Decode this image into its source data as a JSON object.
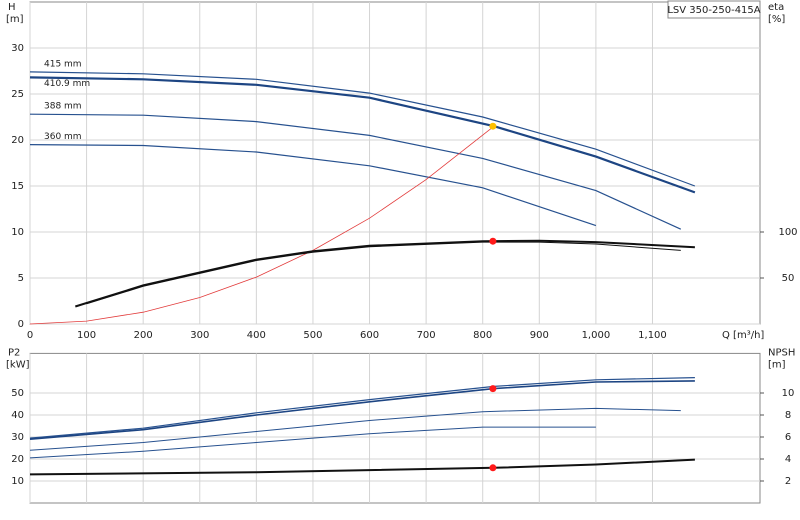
{
  "chart_data": [
    {
      "type": "line",
      "title": "LSV 350-250-415A",
      "ylabel": "H",
      "yunit": "[m]",
      "y2label": "eta",
      "y2unit": "[%]",
      "xlabel": "Q [m³/h]",
      "xlim": [
        0,
        1290
      ],
      "xticks": [
        0,
        100,
        200,
        300,
        400,
        500,
        600,
        700,
        800,
        900,
        {
          "value": 1000,
          "label": "1,000"
        },
        {
          "value": 1100,
          "label": "1,100"
        }
      ],
      "ylim": [
        0,
        35
      ],
      "yticks": [
        0,
        5,
        10,
        15,
        20,
        25,
        30
      ],
      "y2lim": [
        0,
        350
      ],
      "y2ticks": [
        50,
        100
      ],
      "grid": true,
      "series": [
        {
          "name": "415 mm",
          "color": "#27518f",
          "linewidth": 1.2,
          "x": [
            0,
            200,
            400,
            600,
            800,
            1000,
            1175
          ],
          "values": [
            27.4,
            27.2,
            26.6,
            25.1,
            22.5,
            19.0,
            15.0
          ]
        },
        {
          "name": "410.9 mm",
          "color": "#1d4583",
          "linewidth": 2.2,
          "x": [
            0,
            200,
            400,
            600,
            820,
            1000,
            1175
          ],
          "values": [
            26.8,
            26.6,
            26.0,
            24.6,
            21.5,
            18.2,
            14.3
          ]
        },
        {
          "name": "388 mm",
          "color": "#27518f",
          "linewidth": 1.2,
          "x": [
            0,
            200,
            400,
            600,
            800,
            1000,
            1150
          ],
          "values": [
            22.8,
            22.7,
            22.0,
            20.5,
            18.0,
            14.5,
            10.3
          ]
        },
        {
          "name": "360 mm",
          "color": "#27518f",
          "linewidth": 1.2,
          "x": [
            0,
            200,
            400,
            600,
            800,
            1000
          ],
          "values": [
            19.5,
            19.4,
            18.7,
            17.2,
            14.8,
            10.7
          ]
        },
        {
          "color": "#e23b3b",
          "linewidth": 0.8,
          "x": [
            0,
            100,
            200,
            300,
            400,
            500,
            600,
            700,
            820
          ],
          "values": [
            0,
            0.32,
            1.28,
            2.88,
            5.1,
            8.0,
            11.5,
            15.7,
            21.5
          ]
        },
        {
          "axis": "y2",
          "color": "#111111",
          "linewidth": 1.0,
          "x": [
            100,
            200,
            400,
            500,
            600,
            800,
            900,
            1000,
            1150
          ],
          "values": [
            22,
            41,
            69,
            78,
            84,
            89,
            89,
            87,
            80
          ]
        },
        {
          "axis": "y2",
          "color": "#111111",
          "linewidth": 2.0,
          "x": [
            80,
            200,
            400,
            500,
            600,
            800,
            900,
            1000,
            1175
          ],
          "values": [
            19,
            42,
            70,
            79,
            85,
            90,
            90.5,
            89,
            83.5
          ]
        }
      ],
      "markers": [
        {
          "x": 818,
          "y": 21.5,
          "color": "#ffc000"
        },
        {
          "x": 818,
          "y": 90,
          "axis": "y2",
          "color": "#ff1a1a"
        }
      ]
    },
    {
      "type": "line",
      "ylabel": "P2",
      "yunit": "[kW]",
      "y2label": "NPSH",
      "y2unit": "[m]",
      "xlim": [
        0,
        1290
      ],
      "ylim": [
        0,
        68
      ],
      "yticks": [
        10,
        20,
        30,
        40,
        50
      ],
      "y2lim": [
        0,
        13.6
      ],
      "y2ticks": [
        2,
        4,
        6,
        8,
        10
      ],
      "grid": true,
      "series": [
        {
          "color": "#27518f",
          "linewidth": 1.2,
          "x": [
            0,
            200,
            400,
            600,
            820,
            1000,
            1175
          ],
          "values": [
            29.5,
            34,
            41,
            47,
            53,
            56,
            57
          ]
        },
        {
          "color": "#1d4583",
          "linewidth": 1.6,
          "x": [
            0,
            200,
            400,
            600,
            820,
            1000,
            1175
          ],
          "values": [
            29,
            33.3,
            40,
            46,
            52,
            55,
            55.5
          ]
        },
        {
          "color": "#27518f",
          "linewidth": 1.0,
          "x": [
            0,
            200,
            400,
            600,
            800,
            1000,
            1150
          ],
          "values": [
            24,
            27.5,
            32.5,
            37.5,
            41.5,
            43,
            42
          ]
        },
        {
          "color": "#27518f",
          "linewidth": 1.0,
          "x": [
            0,
            200,
            400,
            600,
            800,
            1000
          ],
          "values": [
            20.5,
            23.5,
            27.5,
            31.5,
            34.5,
            34.5
          ]
        },
        {
          "axis": "y2",
          "color": "#111111",
          "linewidth": 2.0,
          "x": [
            0,
            400,
            820,
            1000,
            1175
          ],
          "values": [
            2.6,
            2.8,
            3.2,
            3.5,
            3.95
          ]
        }
      ],
      "markers": [
        {
          "x": 818,
          "y": 52,
          "color": "#ff1a1a"
        },
        {
          "x": 818,
          "y": 3.2,
          "axis": "y2",
          "color": "#ff1a1a"
        }
      ]
    }
  ]
}
